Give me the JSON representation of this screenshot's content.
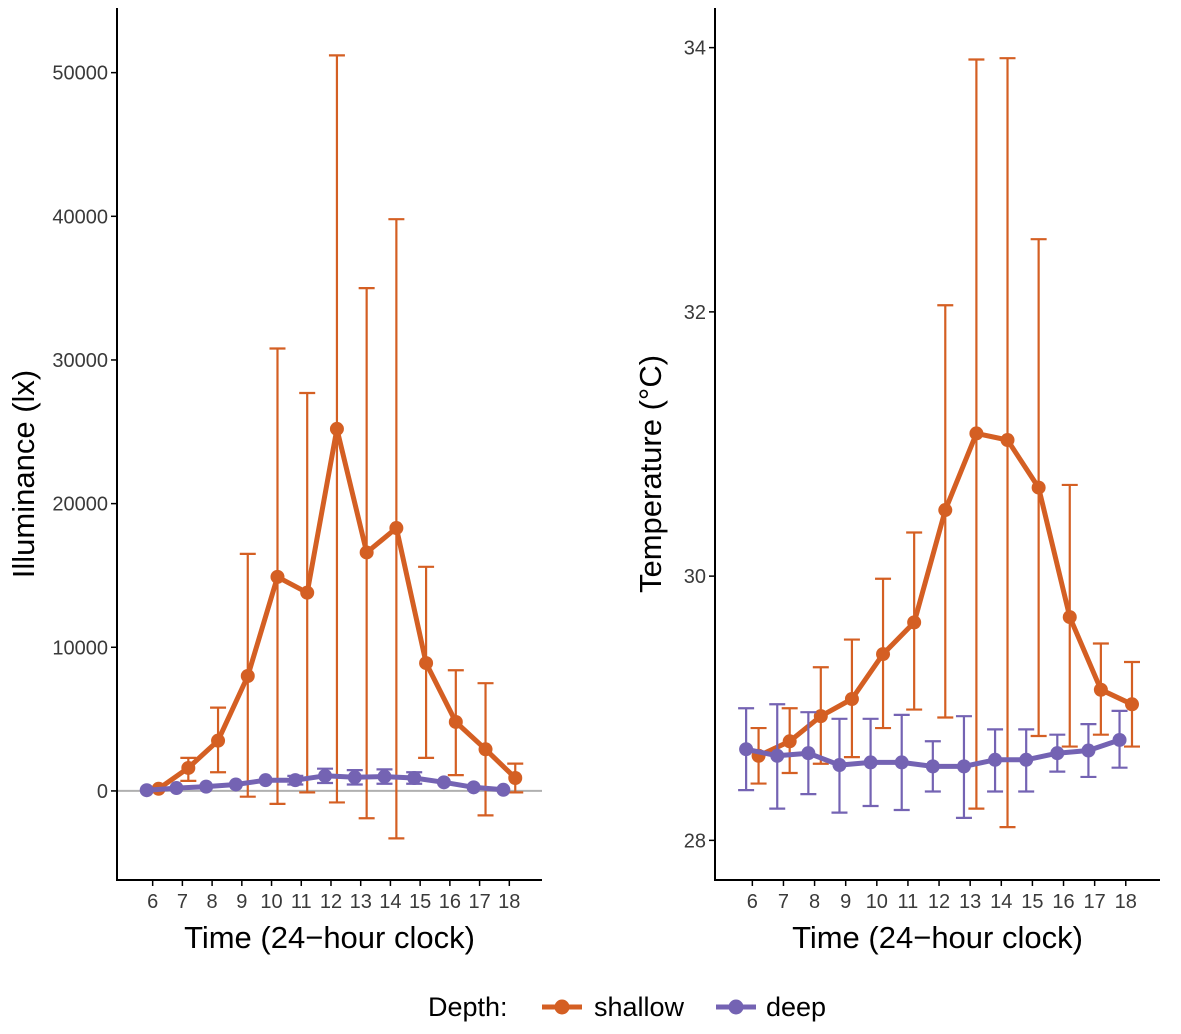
{
  "colors": {
    "shallow": "#d45f23",
    "deep": "#7463b3",
    "axis": "#000000",
    "zero_line": "#b0b0b0"
  },
  "legend": {
    "title": "Depth:",
    "placement": "bottom",
    "entries": [
      {
        "key": "shallow",
        "label": "shallow"
      },
      {
        "key": "deep",
        "label": "deep"
      }
    ]
  },
  "chart_data": [
    {
      "type": "line",
      "panel": "left",
      "title": "",
      "xlabel": "Time (24−hour clock)",
      "ylabel": "Illuminance (lx)",
      "x_ticks": [
        6,
        7,
        8,
        9,
        10,
        11,
        12,
        13,
        14,
        15,
        16,
        17,
        18
      ],
      "x_tick_labels": [
        "6",
        "7",
        "8",
        "9",
        "10",
        "11",
        "12",
        "13",
        "14",
        "15",
        "16",
        "17",
        "18"
      ],
      "xlim": [
        4.8,
        19.1
      ],
      "y_ticks": [
        0,
        10000,
        20000,
        30000,
        40000,
        50000
      ],
      "y_tick_labels": [
        "0",
        "10000",
        "20000",
        "30000",
        "40000",
        "50000"
      ],
      "ylim": [
        -6200,
        54500
      ],
      "zero_line": true,
      "grid": false,
      "series": [
        {
          "name": "shallow",
          "dodge": 0.2,
          "x": [
            6,
            7,
            8,
            9,
            10,
            11,
            12,
            13,
            14,
            15,
            16,
            17,
            18
          ],
          "y": [
            150,
            1600,
            3500,
            8000,
            14900,
            13800,
            25200,
            16600,
            18300,
            8900,
            4800,
            2900,
            900
          ],
          "err_low": [
            0,
            700,
            1300,
            -400,
            -900,
            -100,
            -800,
            -1900,
            -3300,
            2300,
            1100,
            -1700,
            -100
          ],
          "err_high": [
            0,
            2300,
            5800,
            16500,
            30800,
            27700,
            51200,
            35000,
            39800,
            15600,
            8400,
            7500,
            1900
          ]
        },
        {
          "name": "deep",
          "dodge": -0.2,
          "x": [
            6,
            7,
            8,
            9,
            10,
            11,
            12,
            13,
            14,
            15,
            16,
            17,
            18
          ],
          "y": [
            50,
            200,
            300,
            450,
            750,
            750,
            1050,
            950,
            1000,
            900,
            600,
            250,
            80
          ],
          "err_low": [
            0,
            0,
            0,
            0,
            0,
            450,
            550,
            450,
            500,
            500,
            0,
            0,
            0
          ],
          "err_high": [
            0,
            0,
            0,
            0,
            0,
            1050,
            1550,
            1450,
            1500,
            1300,
            0,
            0,
            0
          ]
        }
      ]
    },
    {
      "type": "line",
      "panel": "right",
      "title": "",
      "xlabel": "Time (24−hour clock)",
      "ylabel": "Temperature (°C)",
      "x_ticks": [
        6,
        7,
        8,
        9,
        10,
        11,
        12,
        13,
        14,
        15,
        16,
        17,
        18
      ],
      "x_tick_labels": [
        "6",
        "7",
        "8",
        "9",
        "10",
        "11",
        "12",
        "13",
        "14",
        "15",
        "16",
        "17",
        "18"
      ],
      "xlim": [
        4.8,
        19.1
      ],
      "y_ticks": [
        28,
        30,
        32,
        34
      ],
      "y_tick_labels": [
        "28",
        "30",
        "32",
        "34"
      ],
      "ylim": [
        27.7,
        34.3
      ],
      "zero_line": false,
      "grid": false,
      "series": [
        {
          "name": "shallow",
          "dodge": 0.2,
          "x": [
            6,
            7,
            8,
            9,
            10,
            11,
            12,
            13,
            14,
            15,
            16,
            17,
            18
          ],
          "y": [
            28.64,
            28.75,
            28.94,
            29.07,
            29.41,
            29.65,
            30.5,
            31.08,
            31.03,
            30.67,
            29.69,
            29.14,
            29.03
          ],
          "err_low": [
            28.43,
            28.51,
            28.58,
            28.63,
            28.85,
            28.99,
            28.93,
            28.24,
            28.1,
            28.79,
            28.71,
            28.8,
            28.71
          ],
          "err_high": [
            28.85,
            29.0,
            29.31,
            29.52,
            29.98,
            30.33,
            32.05,
            33.91,
            33.92,
            32.55,
            30.69,
            29.49,
            29.35
          ]
        },
        {
          "name": "deep",
          "dodge": -0.2,
          "x": [
            6,
            7,
            8,
            9,
            10,
            11,
            12,
            13,
            14,
            15,
            16,
            17,
            18
          ],
          "y": [
            28.69,
            28.64,
            28.66,
            28.57,
            28.59,
            28.59,
            28.56,
            28.56,
            28.61,
            28.61,
            28.66,
            28.68,
            28.76
          ],
          "err_low": [
            28.38,
            28.24,
            28.35,
            28.21,
            28.26,
            28.23,
            28.37,
            28.17,
            28.37,
            28.37,
            28.52,
            28.48,
            28.55
          ],
          "err_high": [
            29.0,
            29.03,
            28.97,
            28.92,
            28.92,
            28.95,
            28.75,
            28.94,
            28.84,
            28.84,
            28.8,
            28.88,
            28.98
          ]
        }
      ]
    }
  ]
}
